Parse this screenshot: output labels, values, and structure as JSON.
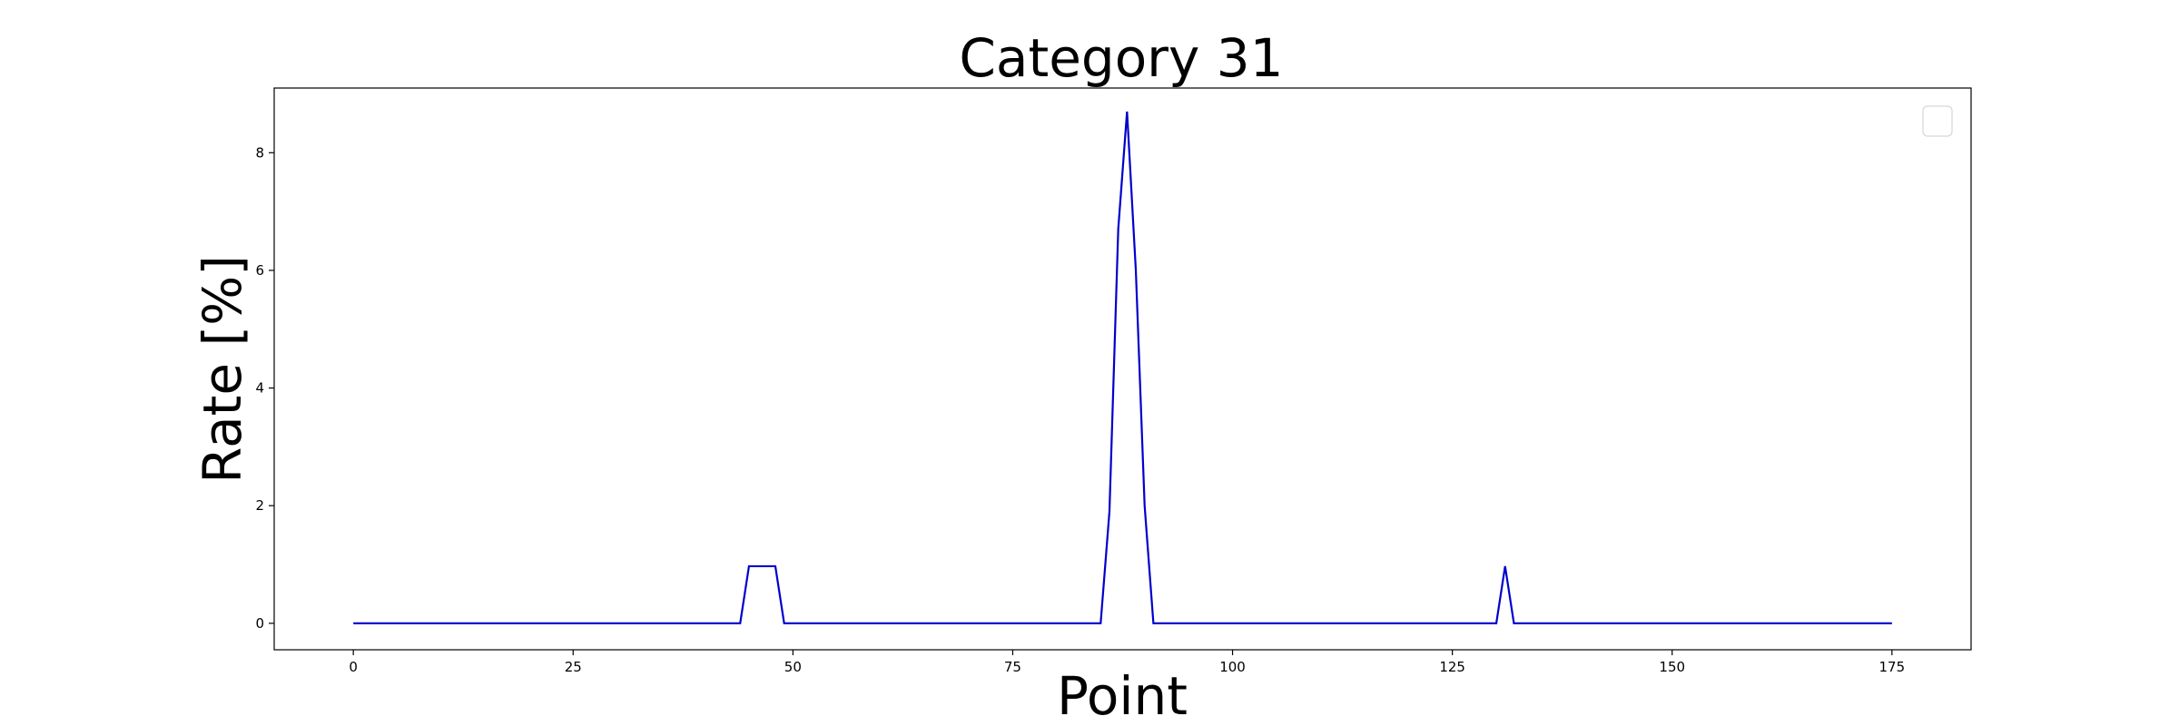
{
  "chart_data": {
    "type": "line",
    "title": "Category 31",
    "xlabel": "Point",
    "ylabel": "Rate [%]",
    "xlim": [
      -9,
      184
    ],
    "ylim": [
      -0.45,
      9.1
    ],
    "xticks": [
      0,
      25,
      50,
      75,
      100,
      125,
      150,
      175
    ],
    "yticks": [
      0,
      2,
      4,
      6,
      8
    ],
    "grid": false,
    "legend": "top-right (empty)",
    "series": [
      {
        "color": "#0000cc",
        "x": [
          0,
          44,
          45,
          48,
          49,
          85,
          86,
          87,
          88,
          89,
          90,
          91,
          130,
          131,
          132,
          175
        ],
        "y": [
          0,
          0,
          0.97,
          0.97,
          0,
          0,
          1.9,
          6.7,
          8.7,
          6.0,
          2.0,
          0,
          0,
          0.97,
          0,
          0
        ]
      }
    ]
  }
}
